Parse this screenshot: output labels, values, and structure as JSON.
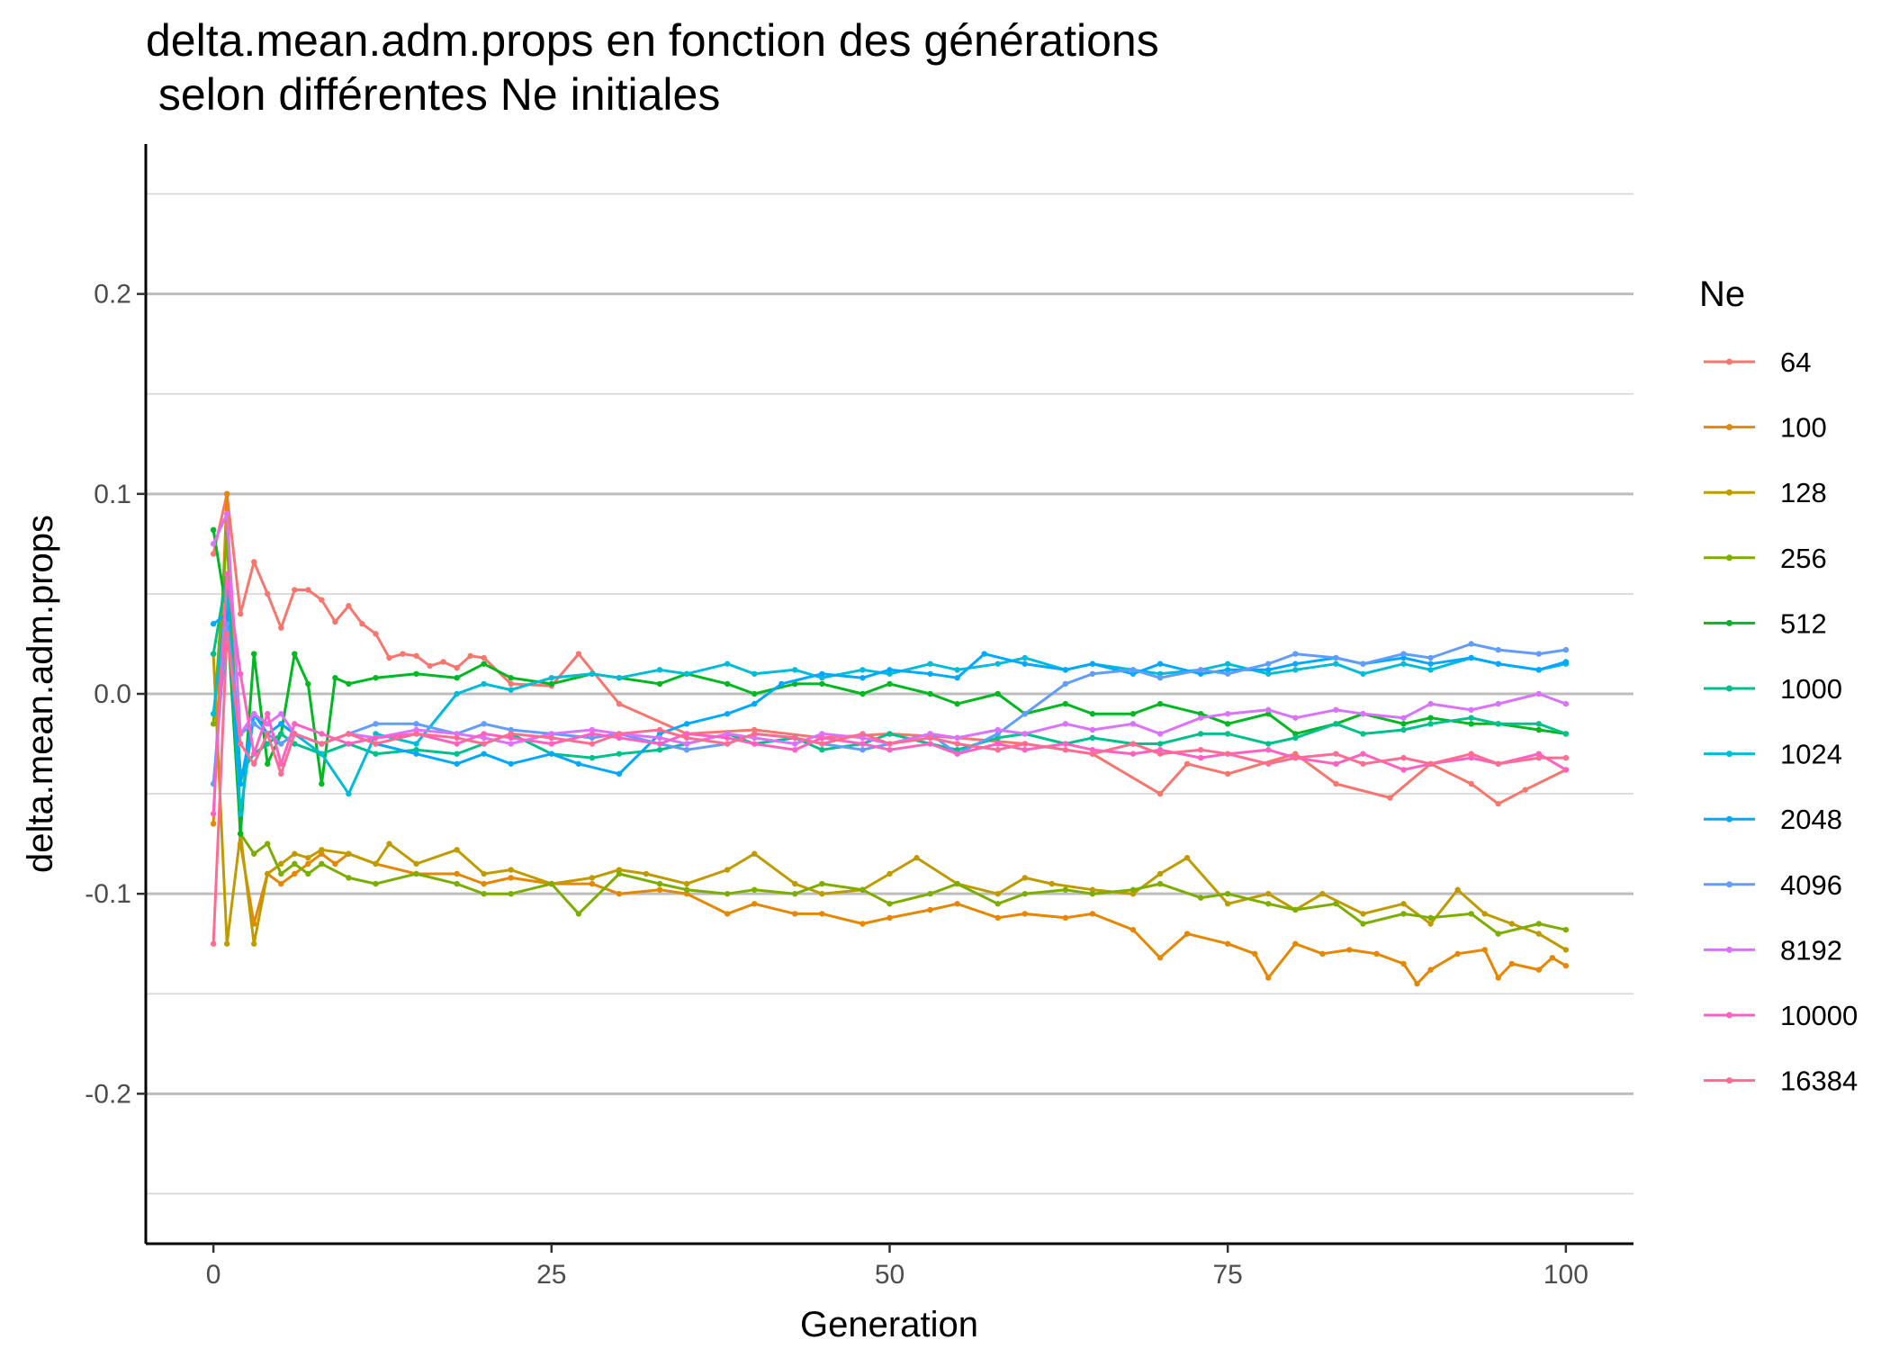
{
  "chart_data": {
    "type": "line",
    "title": "delta.mean.adm.props en fonction des générations",
    "subtitle": " selon différentes Ne initiales",
    "xlabel": "Generation",
    "ylabel": "delta.mean.adm.props",
    "xlim": [
      -5,
      105
    ],
    "ylim": [
      -0.275,
      0.275
    ],
    "x_ticks": [
      0,
      25,
      50,
      75,
      100
    ],
    "x_tick_labels": [
      "0",
      "25",
      "50",
      "75",
      "100"
    ],
    "y_ticks": [
      -0.2,
      -0.1,
      0.0,
      0.1,
      0.2
    ],
    "y_tick_labels": [
      "-0.2",
      "-0.1",
      "0.0",
      "0.1",
      "0.2"
    ],
    "y_minor_ticks": [
      -0.25,
      -0.15,
      -0.05,
      0.05,
      0.15,
      0.25
    ],
    "grid": true,
    "legend_title": "Ne",
    "legend_position": "right",
    "series": [
      {
        "name": "64",
        "color": "#F8766D",
        "x": [
          0,
          1,
          2,
          3,
          4,
          5,
          6,
          7,
          8,
          9,
          10,
          11,
          12,
          13,
          14,
          15,
          16,
          17,
          18,
          19,
          20,
          22,
          25,
          27,
          30,
          35,
          40,
          45,
          50,
          55,
          60,
          65,
          70,
          72,
          75,
          80,
          83,
          87,
          90,
          93,
          95,
          97,
          100
        ],
        "y": [
          0.07,
          0.1,
          0.04,
          0.066,
          0.05,
          0.033,
          0.052,
          0.052,
          0.047,
          0.036,
          0.044,
          0.035,
          0.03,
          0.018,
          0.02,
          0.019,
          0.014,
          0.016,
          0.013,
          0.019,
          0.018,
          0.005,
          0.004,
          0.02,
          -0.005,
          -0.02,
          -0.018,
          -0.022,
          -0.02,
          -0.022,
          -0.025,
          -0.03,
          -0.05,
          -0.035,
          -0.04,
          -0.03,
          -0.045,
          -0.052,
          -0.035,
          -0.045,
          -0.055,
          -0.048,
          -0.038
        ]
      },
      {
        "name": "100",
        "color": "#E58700",
        "x": [
          0,
          1,
          2,
          3,
          4,
          5,
          6,
          7,
          8,
          9,
          10,
          12,
          15,
          18,
          20,
          22,
          25,
          28,
          30,
          33,
          35,
          38,
          40,
          43,
          45,
          48,
          50,
          53,
          55,
          58,
          60,
          63,
          65,
          68,
          70,
          72,
          75,
          77,
          78,
          80,
          82,
          84,
          86,
          88,
          89,
          90,
          92,
          94,
          95,
          96,
          98,
          99,
          100
        ],
        "y": [
          -0.065,
          0.1,
          -0.075,
          -0.115,
          -0.09,
          -0.095,
          -0.09,
          -0.085,
          -0.08,
          -0.085,
          -0.08,
          -0.085,
          -0.09,
          -0.09,
          -0.095,
          -0.092,
          -0.095,
          -0.095,
          -0.1,
          -0.098,
          -0.1,
          -0.11,
          -0.105,
          -0.11,
          -0.11,
          -0.115,
          -0.112,
          -0.108,
          -0.105,
          -0.112,
          -0.11,
          -0.112,
          -0.11,
          -0.118,
          -0.132,
          -0.12,
          -0.125,
          -0.13,
          -0.142,
          -0.125,
          -0.13,
          -0.128,
          -0.13,
          -0.135,
          -0.145,
          -0.138,
          -0.13,
          -0.128,
          -0.142,
          -0.135,
          -0.138,
          -0.132,
          -0.136
        ]
      },
      {
        "name": "128",
        "color": "#C09B00",
        "x": [
          0,
          1,
          2,
          3,
          4,
          5,
          6,
          7,
          8,
          10,
          12,
          13,
          15,
          18,
          20,
          22,
          25,
          28,
          30,
          32,
          35,
          38,
          40,
          43,
          45,
          48,
          50,
          52,
          55,
          58,
          60,
          62,
          65,
          68,
          70,
          72,
          75,
          78,
          80,
          82,
          85,
          88,
          90,
          92,
          94,
          96,
          98,
          100
        ],
        "y": [
          0.02,
          -0.125,
          -0.07,
          -0.125,
          -0.09,
          -0.085,
          -0.08,
          -0.082,
          -0.078,
          -0.08,
          -0.085,
          -0.075,
          -0.085,
          -0.078,
          -0.09,
          -0.088,
          -0.095,
          -0.092,
          -0.088,
          -0.09,
          -0.095,
          -0.088,
          -0.08,
          -0.095,
          -0.1,
          -0.098,
          -0.09,
          -0.082,
          -0.095,
          -0.1,
          -0.092,
          -0.095,
          -0.098,
          -0.1,
          -0.09,
          -0.082,
          -0.105,
          -0.1,
          -0.108,
          -0.1,
          -0.11,
          -0.105,
          -0.115,
          -0.098,
          -0.11,
          -0.115,
          -0.12,
          -0.128
        ]
      },
      {
        "name": "256",
        "color": "#7CAE00",
        "x": [
          0,
          1,
          2,
          3,
          4,
          5,
          6,
          7,
          8,
          10,
          12,
          15,
          18,
          20,
          22,
          25,
          27,
          30,
          33,
          35,
          38,
          40,
          43,
          45,
          48,
          50,
          53,
          55,
          58,
          60,
          63,
          65,
          68,
          70,
          73,
          75,
          78,
          80,
          83,
          85,
          88,
          90,
          93,
          95,
          98,
          100
        ],
        "y": [
          -0.015,
          0.08,
          -0.07,
          -0.08,
          -0.075,
          -0.09,
          -0.085,
          -0.09,
          -0.085,
          -0.092,
          -0.095,
          -0.09,
          -0.095,
          -0.1,
          -0.1,
          -0.095,
          -0.11,
          -0.09,
          -0.095,
          -0.098,
          -0.1,
          -0.098,
          -0.1,
          -0.095,
          -0.098,
          -0.105,
          -0.1,
          -0.095,
          -0.105,
          -0.1,
          -0.098,
          -0.1,
          -0.098,
          -0.095,
          -0.102,
          -0.1,
          -0.105,
          -0.108,
          -0.105,
          -0.115,
          -0.11,
          -0.112,
          -0.11,
          -0.12,
          -0.115,
          -0.118
        ]
      },
      {
        "name": "512",
        "color": "#00B81F",
        "x": [
          0,
          1,
          2,
          3,
          4,
          5,
          6,
          7,
          8,
          9,
          10,
          12,
          15,
          18,
          20,
          22,
          25,
          28,
          30,
          33,
          35,
          38,
          40,
          43,
          45,
          48,
          50,
          53,
          55,
          58,
          60,
          63,
          65,
          68,
          70,
          73,
          75,
          78,
          80,
          83,
          85,
          88,
          90,
          93,
          95,
          98,
          100
        ],
        "y": [
          0.082,
          0.04,
          -0.07,
          0.02,
          -0.035,
          -0.02,
          0.02,
          0.005,
          -0.045,
          0.008,
          0.005,
          0.008,
          0.01,
          0.008,
          0.015,
          0.008,
          0.005,
          0.01,
          0.008,
          0.005,
          0.01,
          0.005,
          0.0,
          0.005,
          0.005,
          0.0,
          0.005,
          0.0,
          -0.005,
          0.0,
          -0.01,
          -0.005,
          -0.01,
          -0.01,
          -0.005,
          -0.01,
          -0.015,
          -0.01,
          -0.02,
          -0.015,
          -0.01,
          -0.015,
          -0.012,
          -0.015,
          -0.015,
          -0.018,
          -0.02
        ]
      },
      {
        "name": "1000",
        "color": "#00C08B",
        "x": [
          0,
          1,
          2,
          3,
          4,
          5,
          6,
          8,
          10,
          12,
          15,
          18,
          20,
          22,
          25,
          28,
          30,
          33,
          35,
          38,
          40,
          43,
          45,
          48,
          50,
          53,
          55,
          58,
          60,
          63,
          65,
          68,
          70,
          73,
          75,
          78,
          80,
          83,
          85,
          88,
          90,
          93,
          95,
          98,
          100
        ],
        "y": [
          0.02,
          0.06,
          -0.04,
          -0.03,
          -0.025,
          -0.02,
          -0.025,
          -0.03,
          -0.025,
          -0.03,
          -0.028,
          -0.03,
          -0.025,
          -0.02,
          -0.03,
          -0.032,
          -0.03,
          -0.028,
          -0.025,
          -0.02,
          -0.025,
          -0.022,
          -0.028,
          -0.025,
          -0.02,
          -0.025,
          -0.028,
          -0.022,
          -0.02,
          -0.025,
          -0.022,
          -0.025,
          -0.025,
          -0.02,
          -0.02,
          -0.025,
          -0.022,
          -0.015,
          -0.02,
          -0.018,
          -0.015,
          -0.012,
          -0.015,
          -0.015,
          -0.02
        ]
      },
      {
        "name": "1024",
        "color": "#00BCD8",
        "x": [
          0,
          1,
          2,
          3,
          4,
          5,
          6,
          8,
          10,
          12,
          15,
          18,
          20,
          22,
          25,
          28,
          30,
          33,
          35,
          38,
          40,
          43,
          45,
          48,
          50,
          53,
          55,
          58,
          60,
          63,
          65,
          68,
          70,
          73,
          75,
          78,
          80,
          83,
          85,
          88,
          90,
          93,
          95,
          98,
          100
        ],
        "y": [
          -0.01,
          0.05,
          -0.06,
          -0.01,
          -0.02,
          -0.015,
          -0.02,
          -0.03,
          -0.05,
          -0.02,
          -0.025,
          0.0,
          0.005,
          0.002,
          0.008,
          0.01,
          0.008,
          0.012,
          0.01,
          0.015,
          0.01,
          0.012,
          0.008,
          0.012,
          0.01,
          0.015,
          0.012,
          0.015,
          0.018,
          0.012,
          0.015,
          0.012,
          0.01,
          0.012,
          0.015,
          0.01,
          0.012,
          0.015,
          0.01,
          0.015,
          0.012,
          0.018,
          0.015,
          0.012,
          0.015
        ]
      },
      {
        "name": "2048",
        "color": "#00A9FF",
        "x": [
          0,
          1,
          2,
          3,
          4,
          5,
          6,
          8,
          10,
          12,
          15,
          18,
          20,
          22,
          25,
          27,
          30,
          33,
          35,
          38,
          40,
          42,
          45,
          48,
          50,
          53,
          55,
          57,
          60,
          63,
          65,
          68,
          70,
          73,
          75,
          78,
          80,
          83,
          85,
          88,
          90,
          93,
          95,
          98,
          100
        ],
        "y": [
          0.035,
          0.04,
          -0.045,
          -0.01,
          -0.02,
          -0.015,
          -0.02,
          -0.025,
          -0.02,
          -0.025,
          -0.03,
          -0.035,
          -0.03,
          -0.035,
          -0.03,
          -0.035,
          -0.04,
          -0.02,
          -0.015,
          -0.01,
          -0.005,
          0.005,
          0.01,
          0.008,
          0.012,
          0.01,
          0.008,
          0.02,
          0.015,
          0.012,
          0.015,
          0.01,
          0.015,
          0.01,
          0.012,
          0.012,
          0.015,
          0.018,
          0.015,
          0.018,
          0.015,
          0.018,
          0.015,
          0.012,
          0.016
        ]
      },
      {
        "name": "4096",
        "color": "#619CFF",
        "x": [
          0,
          1,
          2,
          3,
          4,
          5,
          6,
          8,
          10,
          12,
          15,
          18,
          20,
          22,
          25,
          28,
          30,
          33,
          35,
          38,
          40,
          43,
          45,
          48,
          50,
          53,
          55,
          58,
          60,
          63,
          65,
          68,
          70,
          73,
          75,
          78,
          80,
          83,
          85,
          88,
          90,
          93,
          95,
          98,
          100
        ],
        "y": [
          -0.045,
          0.035,
          -0.02,
          -0.015,
          -0.02,
          -0.025,
          -0.02,
          -0.025,
          -0.02,
          -0.015,
          -0.015,
          -0.02,
          -0.015,
          -0.018,
          -0.02,
          -0.022,
          -0.02,
          -0.025,
          -0.028,
          -0.025,
          -0.02,
          -0.022,
          -0.025,
          -0.028,
          -0.025,
          -0.02,
          -0.03,
          -0.02,
          -0.01,
          0.005,
          0.01,
          0.012,
          0.008,
          0.012,
          0.01,
          0.015,
          0.02,
          0.018,
          0.015,
          0.02,
          0.018,
          0.025,
          0.022,
          0.02,
          0.022
        ]
      },
      {
        "name": "8192",
        "color": "#DB72FB",
        "x": [
          0,
          1,
          2,
          3,
          4,
          5,
          6,
          8,
          10,
          12,
          15,
          18,
          20,
          22,
          25,
          28,
          30,
          33,
          35,
          38,
          40,
          43,
          45,
          48,
          50,
          53,
          55,
          58,
          60,
          63,
          65,
          68,
          70,
          73,
          75,
          78,
          80,
          83,
          85,
          88,
          90,
          93,
          95,
          98,
          100
        ],
        "y": [
          0.075,
          0.09,
          -0.02,
          -0.01,
          -0.015,
          -0.01,
          -0.02,
          -0.025,
          -0.02,
          -0.022,
          -0.018,
          -0.02,
          -0.022,
          -0.025,
          -0.02,
          -0.018,
          -0.02,
          -0.022,
          -0.025,
          -0.02,
          -0.022,
          -0.025,
          -0.02,
          -0.022,
          -0.025,
          -0.02,
          -0.022,
          -0.018,
          -0.02,
          -0.015,
          -0.018,
          -0.015,
          -0.02,
          -0.012,
          -0.01,
          -0.008,
          -0.012,
          -0.008,
          -0.01,
          -0.012,
          -0.005,
          -0.008,
          -0.005,
          0.0,
          -0.005
        ]
      },
      {
        "name": "10000",
        "color": "#FF61C3",
        "x": [
          0,
          1,
          2,
          3,
          4,
          5,
          6,
          8,
          10,
          12,
          15,
          18,
          20,
          22,
          25,
          28,
          30,
          33,
          35,
          38,
          40,
          43,
          45,
          48,
          50,
          53,
          55,
          58,
          60,
          63,
          65,
          68,
          70,
          73,
          75,
          78,
          80,
          83,
          85,
          88,
          90,
          93,
          95,
          98,
          100
        ],
        "y": [
          -0.06,
          0.06,
          0.01,
          -0.03,
          -0.01,
          -0.035,
          -0.015,
          -0.02,
          -0.025,
          -0.022,
          -0.02,
          -0.025,
          -0.02,
          -0.022,
          -0.025,
          -0.02,
          -0.022,
          -0.025,
          -0.02,
          -0.022,
          -0.025,
          -0.028,
          -0.022,
          -0.025,
          -0.028,
          -0.025,
          -0.03,
          -0.025,
          -0.028,
          -0.025,
          -0.028,
          -0.03,
          -0.028,
          -0.032,
          -0.03,
          -0.028,
          -0.032,
          -0.035,
          -0.03,
          -0.038,
          -0.035,
          -0.032,
          -0.035,
          -0.03,
          -0.038
        ]
      },
      {
        "name": "16384",
        "color": "#FF6C91",
        "x": [
          0,
          1,
          2,
          3,
          4,
          5,
          6,
          8,
          10,
          12,
          15,
          18,
          20,
          22,
          25,
          28,
          30,
          33,
          35,
          38,
          40,
          43,
          45,
          48,
          50,
          53,
          55,
          58,
          60,
          63,
          65,
          68,
          70,
          73,
          75,
          78,
          80,
          83,
          85,
          88,
          90,
          93,
          95,
          98,
          100
        ],
        "y": [
          -0.125,
          0.03,
          -0.025,
          -0.035,
          -0.02,
          -0.04,
          -0.02,
          -0.025,
          -0.02,
          -0.025,
          -0.02,
          -0.022,
          -0.025,
          -0.02,
          -0.022,
          -0.025,
          -0.02,
          -0.018,
          -0.022,
          -0.025,
          -0.02,
          -0.022,
          -0.025,
          -0.02,
          -0.025,
          -0.022,
          -0.025,
          -0.028,
          -0.025,
          -0.028,
          -0.03,
          -0.025,
          -0.03,
          -0.028,
          -0.03,
          -0.035,
          -0.032,
          -0.03,
          -0.035,
          -0.032,
          -0.035,
          -0.03,
          -0.035,
          -0.032,
          -0.032
        ]
      }
    ]
  }
}
